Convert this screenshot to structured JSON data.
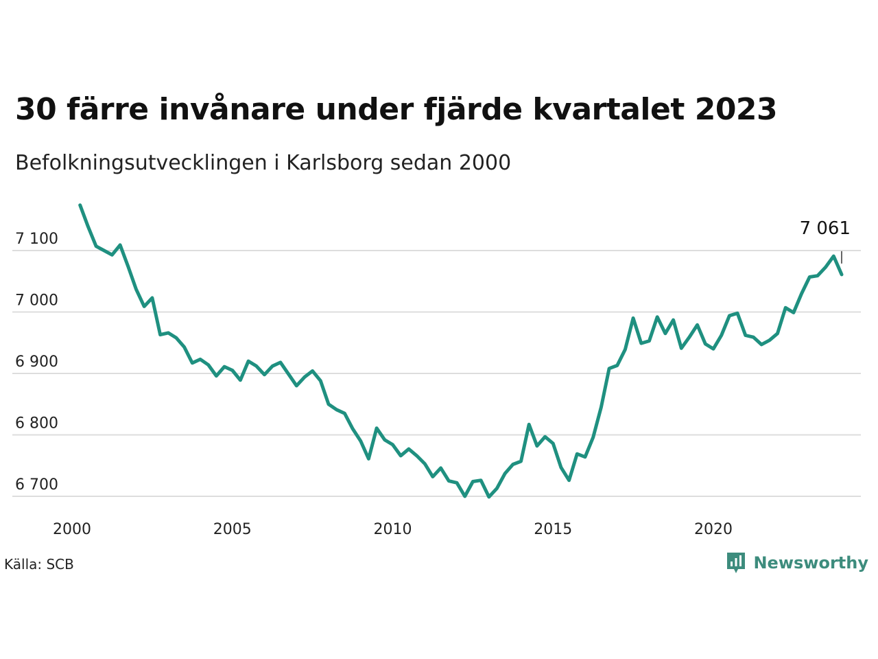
{
  "title": "30 färre invånare under fjärde kvartalet 2023",
  "subtitle": "Befolkningsutvecklingen i Karlsborg sedan 2000",
  "source": "Källa: SCB",
  "brand": {
    "name": "Newsworthy",
    "icon": "newsworthy-logo-icon",
    "color": "#3d8c7d"
  },
  "colors": {
    "line": "#1f9080",
    "grid": "#dddddd"
  },
  "chart_data": {
    "type": "line",
    "title": "30 färre invånare under fjärde kvartalet 2023",
    "subtitle": "Befolkningsutvecklingen i Karlsborg sedan 2000",
    "xlabel": "",
    "ylabel": "",
    "x_ticks": [
      2000,
      2005,
      2010,
      2015,
      2020
    ],
    "x_tick_labels": [
      "2000",
      "2005",
      "2010",
      "2015",
      "2020"
    ],
    "y_ticks": [
      6700,
      6800,
      6900,
      7000,
      7100
    ],
    "y_tick_labels": [
      "6 700",
      "6 800",
      "6 900",
      "7 000",
      "7 100"
    ],
    "ylim": [
      6680,
      7180
    ],
    "xlim": [
      2000,
      2025.1
    ],
    "grid": "horizontal",
    "legend": "none",
    "last_value_label": "7 061",
    "series": [
      {
        "x": [
          2000.25,
          2000.5,
          2000.75,
          2001.0,
          2001.25,
          2001.5,
          2001.75,
          2002.0,
          2002.25,
          2002.5,
          2002.75,
          2003.0,
          2003.25,
          2003.5,
          2003.75,
          2004.0,
          2004.25,
          2004.5,
          2004.75,
          2005.0,
          2005.25,
          2005.5,
          2005.75,
          2006.0,
          2006.25,
          2006.5,
          2006.75,
          2007.0,
          2007.25,
          2007.5,
          2007.75,
          2008.0,
          2008.25,
          2008.5,
          2008.75,
          2009.0,
          2009.25,
          2009.5,
          2009.75,
          2010.0,
          2010.25,
          2010.5,
          2010.75,
          2011.0,
          2011.25,
          2011.5,
          2011.75,
          2012.0,
          2012.25,
          2012.5,
          2012.75,
          2013.0,
          2013.25,
          2013.5,
          2013.75,
          2014.0,
          2014.25,
          2014.5,
          2014.75,
          2015.0,
          2015.25,
          2015.5,
          2015.75,
          2016.0,
          2016.25,
          2016.5,
          2016.75,
          2017.0,
          2017.25,
          2017.5,
          2017.75,
          2018.0,
          2018.25,
          2018.5,
          2018.75,
          2019.0,
          2019.25,
          2019.5,
          2019.75,
          2020.0,
          2020.25,
          2020.5,
          2020.75,
          2021.0,
          2021.25,
          2021.5,
          2021.75,
          2022.0,
          2022.25,
          2022.5,
          2022.75,
          2023.0,
          2023.25,
          2023.5,
          2023.75,
          2024.0
        ],
        "values": [
          7174,
          7139,
          7107,
          7100,
          7093,
          7109,
          7074,
          7037,
          7009,
          7023,
          6963,
          6966,
          6958,
          6943,
          6917,
          6923,
          6914,
          6896,
          6911,
          6905,
          6889,
          6920,
          6912,
          6898,
          6912,
          6918,
          6899,
          6880,
          6894,
          6904,
          6888,
          6850,
          6841,
          6835,
          6810,
          6790,
          6761,
          6811,
          6792,
          6784,
          6766,
          6777,
          6766,
          6753,
          6732,
          6746,
          6725,
          6722,
          6700,
          6724,
          6726,
          6699,
          6713,
          6737,
          6752,
          6757,
          6817,
          6782,
          6797,
          6786,
          6747,
          6726,
          6769,
          6764,
          6796,
          6845,
          6908,
          6913,
          6939,
          6990,
          6949,
          6953,
          6992,
          6965,
          6987,
          6941,
          6959,
          6979,
          6948,
          6940,
          6962,
          6994,
          6998,
          6962,
          6959,
          6947,
          6954,
          6965,
          7007,
          6999,
          7030,
          7057,
          7059,
          7073,
          7091,
          7061
        ]
      }
    ]
  }
}
